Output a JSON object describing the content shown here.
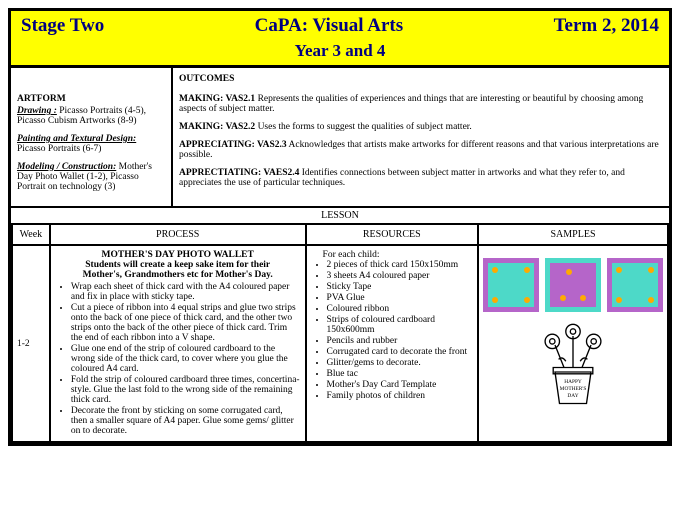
{
  "header": {
    "stage": "Stage Two",
    "title": "CaPA: Visual Arts",
    "term": "Term 2, 2014",
    "year": "Year 3 and 4"
  },
  "artform": {
    "heading": "ARTFORM",
    "drawing_label": "Drawing :",
    "drawing_text": " Picasso Portraits (4-5), Picasso Cubism Artworks (8-9)",
    "painting_label": "Painting and Textural Design:",
    "painting_text": " Picasso Portraits (6-7)",
    "modeling_label": "Modeling / Construction:",
    "modeling_text": " Mother's Day Photo Wallet (1-2), Picasso Portrait on technology (3)"
  },
  "outcomes": {
    "heading": "OUTCOMES",
    "o1b": "MAKING: VAS2.1",
    "o1": " Represents the qualities of experiences and things that are interesting or beautiful by choosing among aspects of subject matter.",
    "o2b": "MAKING: VAS2.2",
    "o2": " Uses the forms to suggest the qualities of subject matter.",
    "o3b": "APPRECIATING: VAS2.3",
    "o3": " Acknowledges that artists make artworks for different reasons and that various interpretations are possible.",
    "o4b": "APPRECTIATING: VAES2.4",
    "o4": " Identifies connections between subject matter in artworks and what they refer to, and appreciates the use of particular techniques."
  },
  "lesson_label": "LESSON",
  "cols": {
    "week": "Week",
    "process": "PROCESS",
    "resources": "RESOURCES",
    "samples": "SAMPLES"
  },
  "row": {
    "week": "1-2",
    "proc_title": "MOTHER'S DAY PHOTO WALLET",
    "proc_sub": "Students will create a keep sake item for their Mother's, Grandmothers etc for Mother's Day.",
    "proc_items": [
      "Wrap each sheet of thick card with the A4 coloured paper and fix in place with sticky tape.",
      "Cut a piece of ribbon into 4 equal strips and glue two strips onto the back of one piece of thick card, and the other two strips onto the back of the other piece of thick card. Trim the end of each ribbon into a V shape.",
      "Glue one end of the strip of coloured cardboard to the wrong side of the thick card, to cover where you glue the coloured A4 card.",
      "Fold the strip of coloured cardboard three times, concertina-style. Glue the last fold to the wrong side of the remaining thick card.",
      "Decorate the front by sticking on some corrugated card, then a smaller square of A4 paper. Glue some gems/ glitter on to decorate."
    ],
    "res_lead": "For each child:",
    "res_items": [
      "2 pieces of thick card 150x150mm",
      "3 sheets A4 coloured paper",
      "Sticky Tape",
      "PVA Glue",
      "Coloured ribbon",
      "Strips of coloured cardboard 150x600mm",
      "Pencils and rubber",
      "Corrugated card to decorate the front",
      "Glitter/gems to decorate.",
      "Blue tac",
      "Mother's Day Card Template",
      "Family photos of children"
    ]
  }
}
